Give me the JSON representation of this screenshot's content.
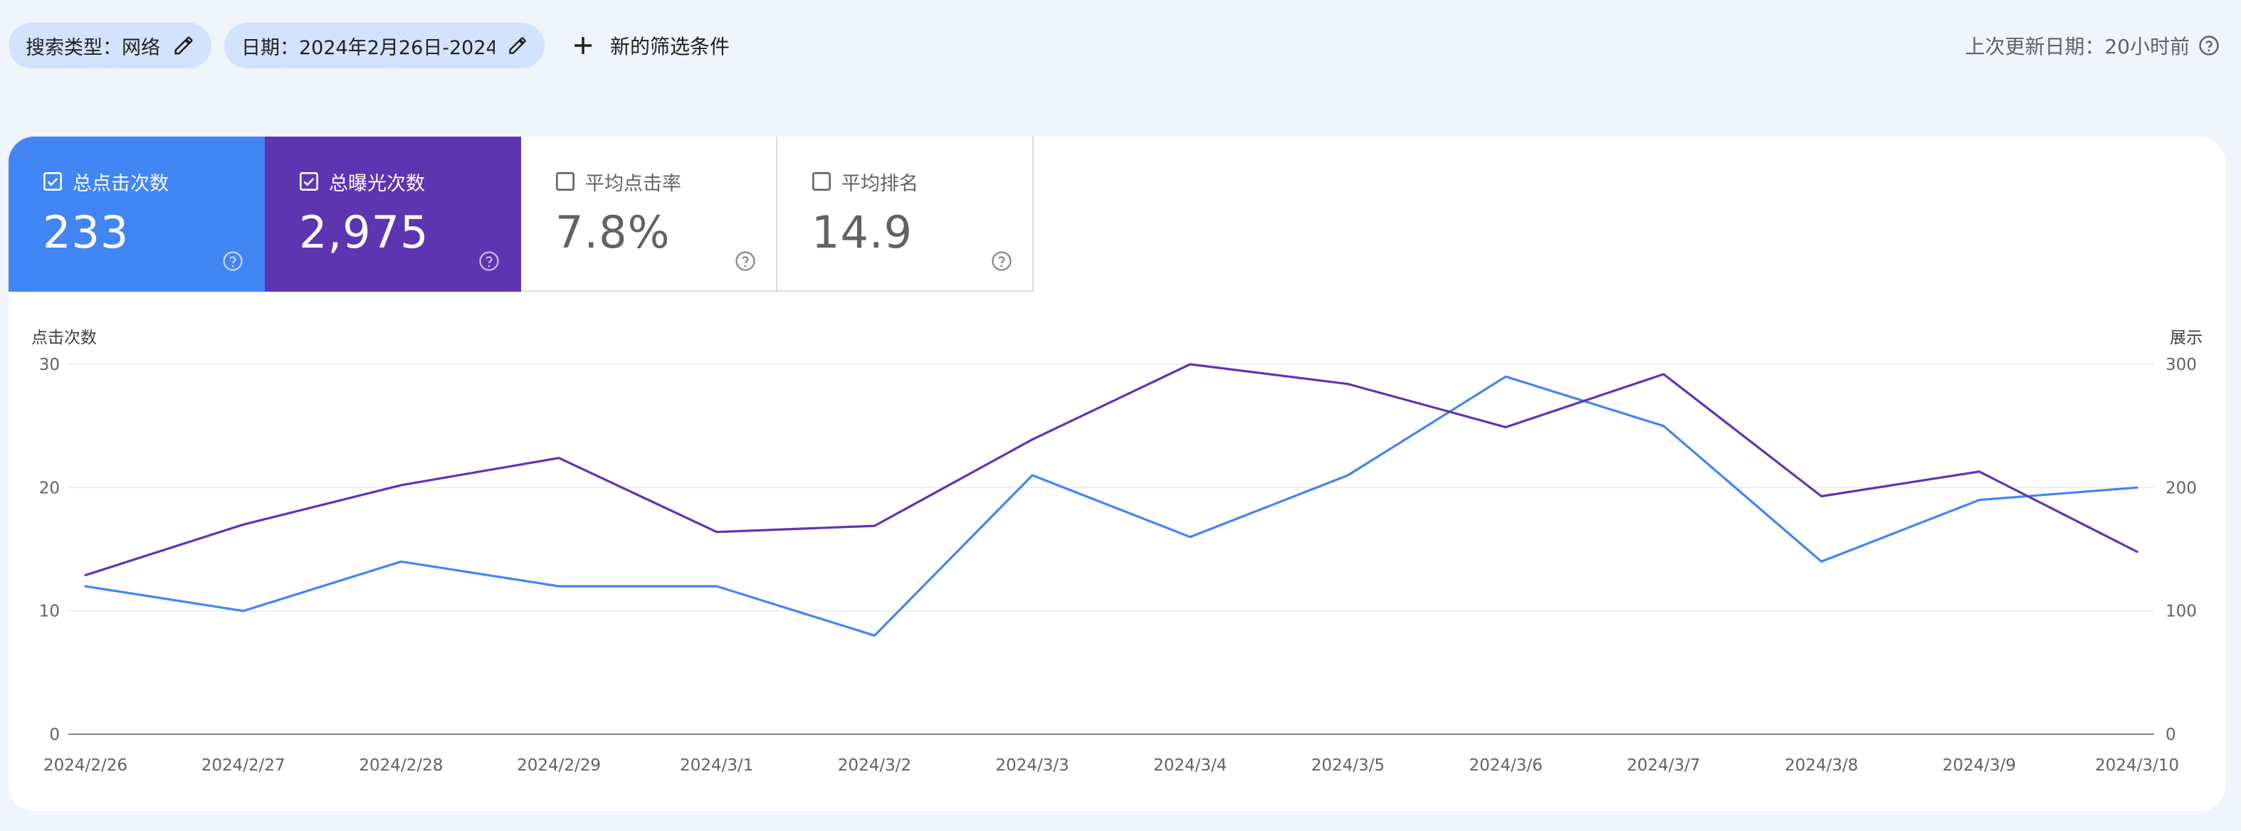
{
  "filters": {
    "search_type_chip": "搜索类型：网络",
    "date_chip": "日期：2024年2月26日-2024…",
    "new_filter": "新的筛选条件",
    "last_updated": "上次更新日期：20小时前"
  },
  "metrics": [
    {
      "label": "总点击次数",
      "value": "233",
      "checked": true,
      "color": "#4285f4"
    },
    {
      "label": "总曝光次数",
      "value": "2,975",
      "checked": true,
      "color": "#5e35b1"
    },
    {
      "label": "平均点击率",
      "value": "7.8%",
      "checked": false
    },
    {
      "label": "平均排名",
      "value": "14.9",
      "checked": false
    }
  ],
  "chart_data": {
    "type": "line",
    "x": [
      "2024/2/26",
      "2024/2/27",
      "2024/2/28",
      "2024/2/29",
      "2024/3/1",
      "2024/3/2",
      "2024/3/3",
      "2024/3/4",
      "2024/3/5",
      "2024/3/6",
      "2024/3/7",
      "2024/3/8",
      "2024/3/9",
      "2024/3/10"
    ],
    "series": [
      {
        "name": "点击次数",
        "axis": "left",
        "color": "#4285f4",
        "values": [
          12,
          10,
          14,
          12,
          12,
          8,
          21,
          16,
          21,
          29,
          25,
          14,
          19,
          20
        ]
      },
      {
        "name": "展示",
        "axis": "right",
        "color": "#5e35b1",
        "values": [
          129,
          170,
          202,
          224,
          164,
          169,
          239,
          300,
          284,
          249,
          292,
          193,
          213,
          148
        ]
      }
    ],
    "ylabel_left": "点击次数",
    "ylabel_right": "展示",
    "ylim_left": [
      0,
      30
    ],
    "ylim_right": [
      0,
      300
    ],
    "yticks_left": [
      "0",
      "10",
      "20",
      "30"
    ],
    "yticks_right": [
      "0",
      "100",
      "200",
      "300"
    ],
    "grid": true
  }
}
